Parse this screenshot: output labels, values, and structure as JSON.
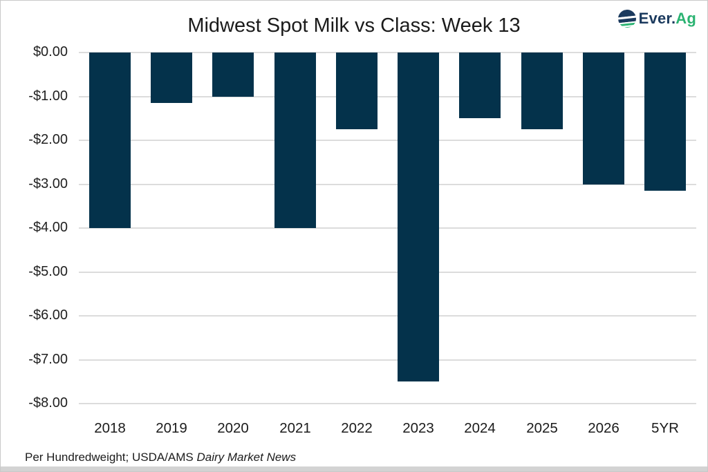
{
  "header": {
    "title": "Midwest Spot Milk vs Class: Week 13",
    "logo": {
      "text_primary": "Ever.",
      "text_accent": "Ag",
      "icon_name": "ever-ag-leaf-icon",
      "navy_color": "#1b3a5e",
      "green_color": "#2bb372"
    }
  },
  "chart_data": {
    "type": "bar",
    "title": "Midwest Spot Milk vs Class: Week 13",
    "categories": [
      "2018",
      "2019",
      "2020",
      "2021",
      "2022",
      "2023",
      "2024",
      "2025",
      "2026",
      "5YR"
    ],
    "values": [
      -4.0,
      -1.15,
      -1.0,
      -4.0,
      -1.75,
      -7.5,
      -1.5,
      -1.75,
      -3.0,
      -3.15
    ],
    "bar_color": "#04324b",
    "xlabel": "",
    "ylabel": "",
    "ylim": [
      -8,
      0
    ],
    "ytick_step": 1,
    "ytick_labels": [
      "$0.00",
      "-$1.00",
      "-$2.00",
      "-$3.00",
      "-$4.00",
      "-$5.00",
      "-$6.00",
      "-$7.00",
      "-$8.00"
    ],
    "grid": true,
    "legend": false,
    "gridline_color": "#dcdcdc"
  },
  "footer": {
    "caption_regular": "Per Hundredweight; USDA/AMS ",
    "caption_italic": "Dairy Market News"
  }
}
